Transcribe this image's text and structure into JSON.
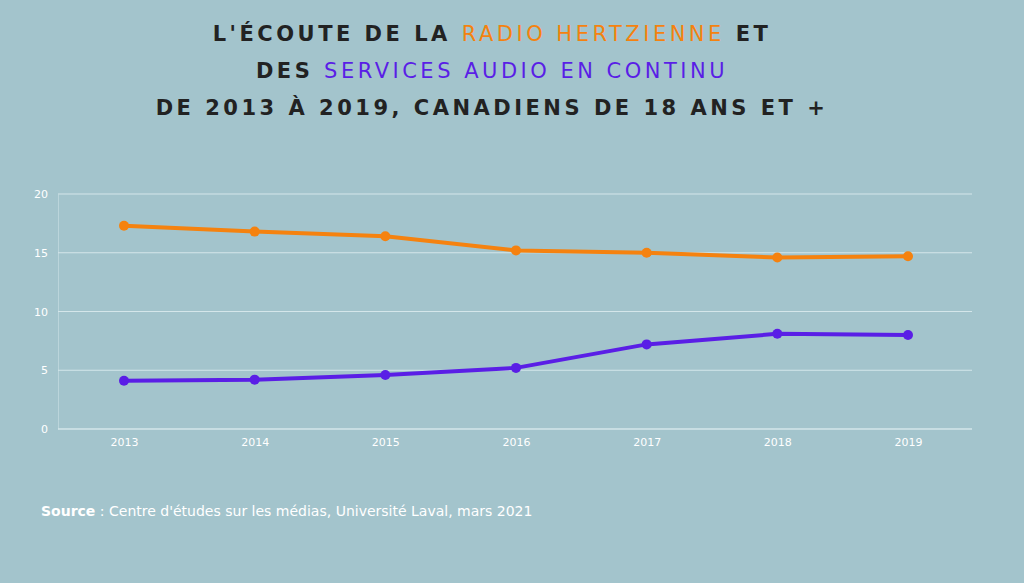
{
  "chart_data": {
    "type": "line",
    "title": [
      "L'ÉCOUTE DE LA RADIO HERTZIENNE ET",
      "DES SERVICES AUDIO EN CONTINU",
      "DE 2013 À 2019, CANADIENS DE 18 ANS ET +"
    ],
    "source": "Source : Centre d'études sur les médias, Université Laval, mars 2021",
    "categories": [
      "2013",
      "2014",
      "2015",
      "2016",
      "2017",
      "2018",
      "2019"
    ],
    "series": [
      {
        "name": "RADIO HERTZIENNE",
        "color": "#f5820f",
        "marker": "circle",
        "values": [
          17.3,
          16.8,
          16.4,
          15.2,
          15.0,
          14.6,
          14.7
        ]
      },
      {
        "name": "SERVICES AUDIO EN CONTINU",
        "color": "#5a1ee6",
        "marker": "circle",
        "values": [
          4.1,
          4.2,
          4.6,
          5.2,
          7.2,
          8.1,
          8.0
        ]
      }
    ],
    "ylim": [
      0,
      20
    ],
    "yticks": [
      0,
      5,
      10,
      15,
      20
    ],
    "grid": true
  }
}
